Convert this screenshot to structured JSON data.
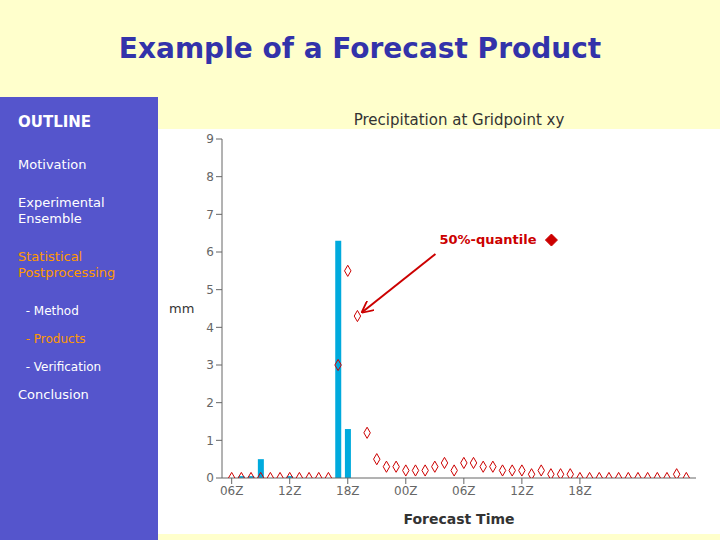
{
  "title": "Example of a Forecast Product",
  "title_color": "#3333aa",
  "background": "#ffffcc",
  "outline": {
    "title": "OUTLINE",
    "title_color": "#ffffff",
    "color": "#5555cc",
    "items": [
      {
        "text": "Motivation",
        "color": "#ffffff"
      },
      {
        "text": "Experimental\nEnsemble",
        "color": "#ffffff"
      },
      {
        "text": "Statistical\nPostprocessing",
        "color": "#ff9900"
      },
      {
        "text": "  - Method",
        "color": "#ffffff"
      },
      {
        "text": "  - Products",
        "color": "#ff9900"
      },
      {
        "text": "  - Verification",
        "color": "#ffffff"
      },
      {
        "text": "Conclusion",
        "color": "#ffffff"
      }
    ]
  },
  "chart_data": {
    "type": "bar",
    "title": "Precipitation at Gridpoint xy",
    "x_label": "Forecast Time",
    "y_label": "mm",
    "xlim": [
      0,
      49
    ],
    "xticks": [
      {
        "value": 1,
        "label": "06Z"
      },
      {
        "value": 7,
        "label": "12Z"
      },
      {
        "value": 13,
        "label": "18Z"
      },
      {
        "value": 19,
        "label": "00Z"
      },
      {
        "value": 25,
        "label": "06Z"
      },
      {
        "value": 31,
        "label": "12Z"
      },
      {
        "value": 37,
        "label": "18Z"
      }
    ],
    "ylim": [
      0,
      9
    ],
    "yticks": [
      0,
      1,
      2,
      3,
      4,
      5,
      6,
      7,
      8,
      9
    ],
    "grid": false,
    "series": [
      {
        "type": "bar",
        "color": "#00aadd",
        "x": [
          2,
          3,
          4,
          7,
          12,
          13
        ],
        "values": [
          0.05,
          0.05,
          0.5,
          0.05,
          6.3,
          1.3
        ]
      },
      {
        "type": "scatter",
        "marker": "diamond",
        "color": "#cc0000",
        "x": [
          1,
          2,
          3,
          4,
          5,
          6,
          7,
          8,
          9,
          10,
          11,
          12,
          13,
          14,
          15,
          16,
          17,
          18,
          19,
          20,
          21,
          22,
          23,
          24,
          25,
          26,
          27,
          28,
          29,
          30,
          31,
          32,
          33,
          34,
          35,
          36,
          37,
          38,
          39,
          40,
          41,
          42,
          43,
          44,
          45,
          46,
          47,
          48
        ],
        "values": [
          0.0,
          0.0,
          0.0,
          0.0,
          0.0,
          0.0,
          0.0,
          0.0,
          0.0,
          0.0,
          0.0,
          3.0,
          5.5,
          4.3,
          1.2,
          0.5,
          0.3,
          0.3,
          0.2,
          0.2,
          0.2,
          0.3,
          0.4,
          0.2,
          0.4,
          0.4,
          0.3,
          0.3,
          0.2,
          0.2,
          0.2,
          0.1,
          0.2,
          0.1,
          0.1,
          0.1,
          0.0,
          0.0,
          0.0,
          0.0,
          0.0,
          0.0,
          0.0,
          0.0,
          0.0,
          0.0,
          0.1,
          0.0
        ]
      }
    ],
    "annotation": {
      "text": "50%-quantile",
      "color": "#cc0000",
      "x": 14,
      "y": 4.3,
      "marker": "diamond"
    }
  }
}
